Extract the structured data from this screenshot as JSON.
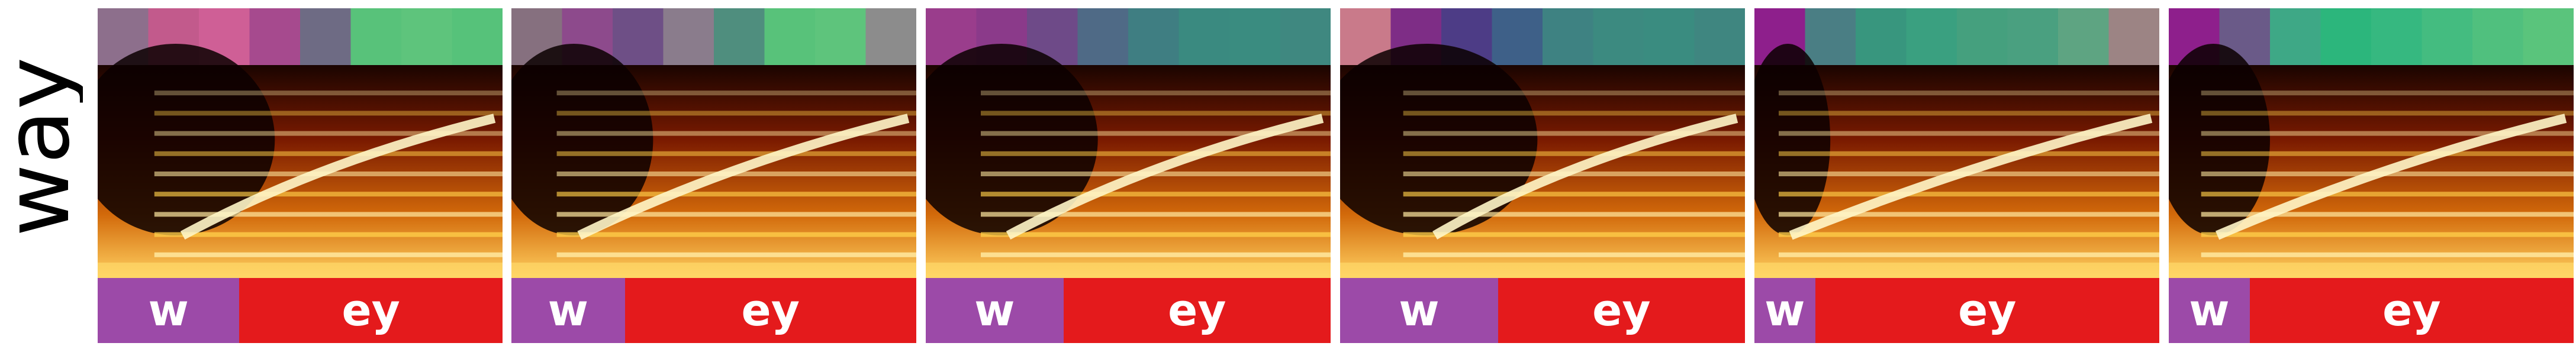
{
  "word": "way",
  "colors": {
    "phone_w": "#9c4aa8",
    "phone_ey": "#e41a1c",
    "strip_colormap": "viridis-like (purple to green)",
    "spectrogram_colormap": "afmhot (black-red-orange-yellow-white)"
  },
  "panels": [
    {
      "strip": [
        "#8d6f8c",
        "#c25a8c",
        "#cf5f96",
        "#a64a8e",
        "#6e6b84",
        "#58c27a",
        "#5ec47c",
        "#56c27a"
      ],
      "phones": [
        {
          "label": "w",
          "frac": 0.35
        },
        {
          "label": "ey",
          "frac": 0.65
        }
      ]
    },
    {
      "strip": [
        "#86707f",
        "#8d4a8c",
        "#6e4f86",
        "#8a7c8c",
        "#4f8e7e",
        "#58c27a",
        "#5ec47c",
        "#8c8c8c"
      ],
      "phones": [
        {
          "label": "w",
          "frac": 0.28
        },
        {
          "label": "ey",
          "frac": 0.72
        }
      ]
    },
    {
      "strip": [
        "#9a3d8c",
        "#8b3a8a",
        "#6e4a88",
        "#4f6a86",
        "#3f7e82",
        "#3a8a80",
        "#3a8c80",
        "#3f8880"
      ],
      "phones": [
        {
          "label": "w",
          "frac": 0.34
        },
        {
          "label": "ey",
          "frac": 0.66
        }
      ]
    },
    {
      "strip": [
        "#c97a8a",
        "#7e2d86",
        "#4d3c86",
        "#3e6088",
        "#3e8282",
        "#3c8a80",
        "#3a8c80",
        "#3f8680"
      ],
      "phones": [
        {
          "label": "w",
          "frac": 0.39
        },
        {
          "label": "ey",
          "frac": 0.61
        }
      ]
    },
    {
      "strip": [
        "#8e1f8c",
        "#4a7e84",
        "#38967e",
        "#3aa080",
        "#45a07e",
        "#4aa080",
        "#5ea482",
        "#9c8484"
      ],
      "phones": [
        {
          "label": "w",
          "frac": 0.15
        },
        {
          "label": "ey",
          "frac": 0.85
        }
      ]
    },
    {
      "strip": [
        "#8e1f8c",
        "#6a5a88",
        "#3ea886",
        "#2cb67c",
        "#36b880",
        "#44bc80",
        "#50c07e",
        "#5ac47c"
      ],
      "phones": [
        {
          "label": "w",
          "frac": 0.2
        },
        {
          "label": "ey",
          "frac": 0.8
        }
      ]
    }
  ]
}
